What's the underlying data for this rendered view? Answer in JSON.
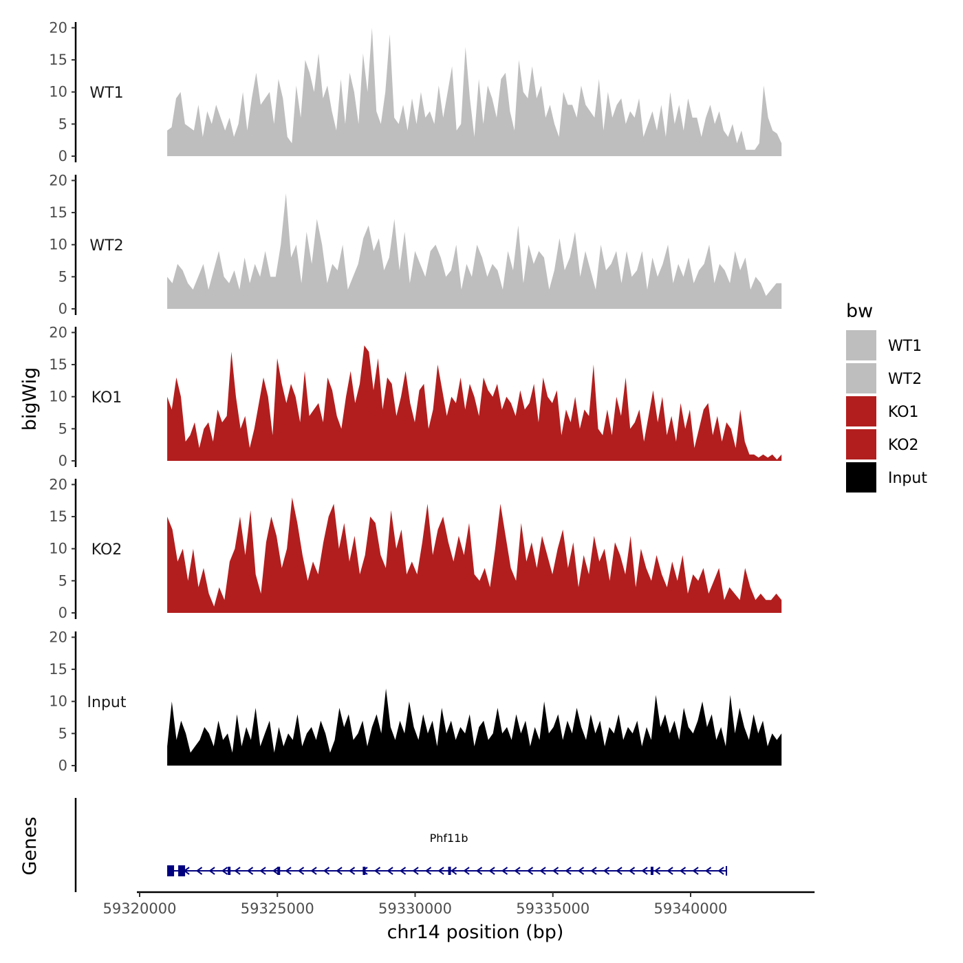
{
  "chart_data": {
    "type": "area",
    "ylabel": "bigWig",
    "xlabel": "chr14 position (bp)",
    "x_range": [
      59321000,
      59343300
    ],
    "x_axis_limits": [
      59319900,
      59344500
    ],
    "x_ticks": [
      59320000,
      59325000,
      59330000,
      59335000,
      59340000
    ],
    "x_tick_labels": [
      "59320000",
      "59325000",
      "59330000",
      "59335000",
      "59340000"
    ],
    "ylim": [
      0,
      20.5
    ],
    "y_ticks": [
      0,
      5,
      10,
      15,
      20
    ],
    "y_tick_labels": [
      "0",
      "5",
      "10",
      "15",
      "20"
    ],
    "legend": {
      "title": "bw",
      "placement": "right",
      "items": [
        {
          "label": "WT1",
          "color": "#bebebe"
        },
        {
          "label": "WT2",
          "color": "#bebebe"
        },
        {
          "label": "KO1",
          "color": "#b21e1e"
        },
        {
          "label": "KO2",
          "color": "#b21e1e"
        },
        {
          "label": "Input",
          "color": "#000000"
        }
      ]
    },
    "series": [
      {
        "name": "WT1",
        "color": "#bebebe",
        "values": [
          4,
          4.5,
          9,
          10,
          5,
          4.5,
          4,
          8,
          3,
          7,
          5,
          8,
          6,
          4,
          6,
          3,
          5,
          10,
          4,
          9,
          13,
          8,
          9,
          10,
          5,
          12,
          9,
          3,
          2,
          11,
          6,
          15,
          13,
          10,
          16,
          9,
          11,
          7,
          4,
          12,
          5,
          13,
          10,
          5,
          16,
          10,
          20,
          7,
          5,
          10,
          19,
          6,
          5,
          8,
          4,
          9,
          5,
          10,
          6,
          7,
          5,
          11,
          6,
          10,
          14,
          4,
          5,
          17,
          9,
          3,
          12,
          5,
          11,
          9,
          6,
          12,
          13,
          7,
          4,
          15,
          10,
          9,
          14,
          9,
          11,
          6,
          8,
          5,
          3,
          10,
          8,
          8,
          6,
          11,
          8,
          7,
          6,
          12,
          4,
          10,
          6,
          8,
          9,
          5,
          7,
          6,
          9,
          3,
          5,
          7,
          4,
          8,
          3,
          10,
          5,
          8,
          4,
          9,
          6,
          6,
          3,
          6,
          8,
          5,
          7,
          4,
          3,
          5,
          2,
          4,
          1,
          1,
          1,
          2,
          11,
          6,
          4,
          3.5,
          2
        ]
      },
      {
        "name": "WT2",
        "color": "#bebebe",
        "values": [
          5,
          4,
          7,
          6,
          4,
          3,
          5,
          7,
          3,
          6,
          9,
          5,
          4,
          6,
          3,
          8,
          4,
          7,
          5,
          9,
          5,
          5,
          10,
          18,
          8,
          10,
          4,
          12,
          7,
          14,
          10,
          4,
          7,
          6,
          10,
          3,
          5,
          7,
          11,
          13,
          9,
          11,
          6,
          8,
          14,
          6,
          12,
          4,
          9,
          7,
          5,
          9,
          10,
          8,
          5,
          6,
          10,
          3,
          7,
          5,
          10,
          8,
          5,
          7,
          6,
          3,
          9,
          6,
          13,
          4,
          10,
          7,
          9,
          8,
          3,
          6,
          11,
          6,
          8,
          12,
          5,
          9,
          6,
          3,
          10,
          6,
          7,
          9,
          4,
          9,
          5,
          6,
          9,
          3,
          8,
          5,
          7,
          10,
          4,
          7,
          5,
          8,
          4,
          6,
          7,
          10,
          4,
          7,
          6,
          4,
          9,
          6,
          8,
          3,
          5,
          4,
          2,
          3,
          4,
          4
        ]
      },
      {
        "name": "KO1",
        "color": "#b21e1e",
        "values": [
          10,
          8,
          13,
          10,
          3,
          4,
          6,
          2,
          5,
          6,
          3,
          8,
          6,
          7,
          17,
          10,
          5,
          7,
          2,
          5,
          9,
          13,
          10,
          4,
          16,
          12,
          9,
          12,
          10,
          6,
          14,
          7,
          8,
          9,
          6,
          13,
          11,
          7,
          5,
          10,
          14,
          9,
          12,
          18,
          17,
          11,
          16,
          8,
          13,
          12,
          7,
          10,
          14,
          9,
          6,
          11,
          12,
          5,
          8,
          15,
          11,
          7,
          10,
          9,
          13,
          8,
          12,
          10,
          7,
          13,
          11,
          10,
          12,
          8,
          10,
          9,
          7,
          11,
          8,
          9,
          12,
          6,
          13,
          10,
          9,
          11,
          4,
          8,
          6,
          10,
          5,
          8,
          7,
          15,
          5,
          4,
          8,
          4,
          10,
          7,
          13,
          5,
          6,
          8,
          3,
          7,
          11,
          6,
          10,
          4,
          7,
          3,
          9,
          5,
          8,
          2,
          5,
          8,
          9,
          4,
          7,
          3,
          6,
          5,
          2,
          8,
          3,
          1,
          1,
          0.5,
          1,
          0.5,
          1,
          0.2,
          1
        ]
      },
      {
        "name": "KO2",
        "color": "#b21e1e",
        "values": [
          15,
          13,
          8,
          10,
          5,
          10,
          4,
          7,
          3,
          1,
          4,
          2,
          8,
          10,
          15,
          9,
          16,
          6,
          3,
          11,
          15,
          12,
          7,
          10,
          18,
          14,
          9,
          5,
          8,
          6,
          11,
          15,
          17,
          10,
          14,
          8,
          12,
          6,
          9,
          15,
          14,
          9,
          7,
          16,
          10,
          13,
          6,
          8,
          6,
          11,
          17,
          9,
          13,
          15,
          11,
          8,
          12,
          9,
          14,
          6,
          5,
          7,
          4,
          10,
          17,
          12,
          7,
          5,
          14,
          8,
          11,
          7,
          12,
          9,
          6,
          10,
          13,
          7,
          11,
          4,
          9,
          6,
          12,
          8,
          10,
          5,
          11,
          9,
          6,
          12,
          4,
          10,
          7,
          5,
          9,
          6,
          4,
          8,
          5,
          9,
          3,
          6,
          5,
          7,
          3,
          5,
          7,
          2,
          4,
          3,
          2,
          7,
          4,
          2,
          3,
          2,
          2,
          3,
          2
        ]
      },
      {
        "name": "Input",
        "color": "#000000",
        "values": [
          3,
          10,
          4,
          7,
          5,
          2,
          3,
          4,
          6,
          5,
          3,
          7,
          4,
          5,
          2,
          8,
          3,
          6,
          4,
          9,
          3,
          5,
          7,
          2,
          6,
          3,
          5,
          4,
          8,
          3,
          5,
          6,
          4,
          7,
          5,
          2,
          4,
          9,
          6,
          8,
          4,
          5,
          7,
          3,
          6,
          8,
          5,
          12,
          6,
          4,
          7,
          5,
          10,
          6,
          4,
          8,
          5,
          7,
          3,
          9,
          5,
          7,
          4,
          6,
          5,
          8,
          3,
          6,
          7,
          4,
          5,
          9,
          5,
          6,
          4,
          8,
          5,
          7,
          3,
          6,
          4,
          10,
          5,
          6,
          8,
          4,
          7,
          5,
          9,
          6,
          4,
          8,
          5,
          7,
          3,
          6,
          5,
          8,
          4,
          6,
          5,
          7,
          3,
          6,
          4,
          11,
          6,
          8,
          5,
          7,
          4,
          9,
          6,
          5,
          7,
          10,
          6,
          8,
          4,
          6,
          3,
          11,
          5,
          9,
          6,
          4,
          8,
          5,
          7,
          3,
          5,
          4,
          5
        ]
      }
    ],
    "genes": {
      "title": "Genes",
      "items": [
        {
          "name": "Phf11b",
          "start": 59321000,
          "end": 59341300,
          "strand": "-",
          "color": "#00007f",
          "exons": [
            [
              59321000,
              59321250
            ],
            [
              59321400,
              59321600
            ],
            [
              59323200,
              59323300
            ],
            [
              59325000,
              59325100
            ],
            [
              59328100,
              59328200
            ],
            [
              59331200,
              59331300
            ],
            [
              59338550,
              59338650
            ]
          ]
        }
      ]
    }
  }
}
